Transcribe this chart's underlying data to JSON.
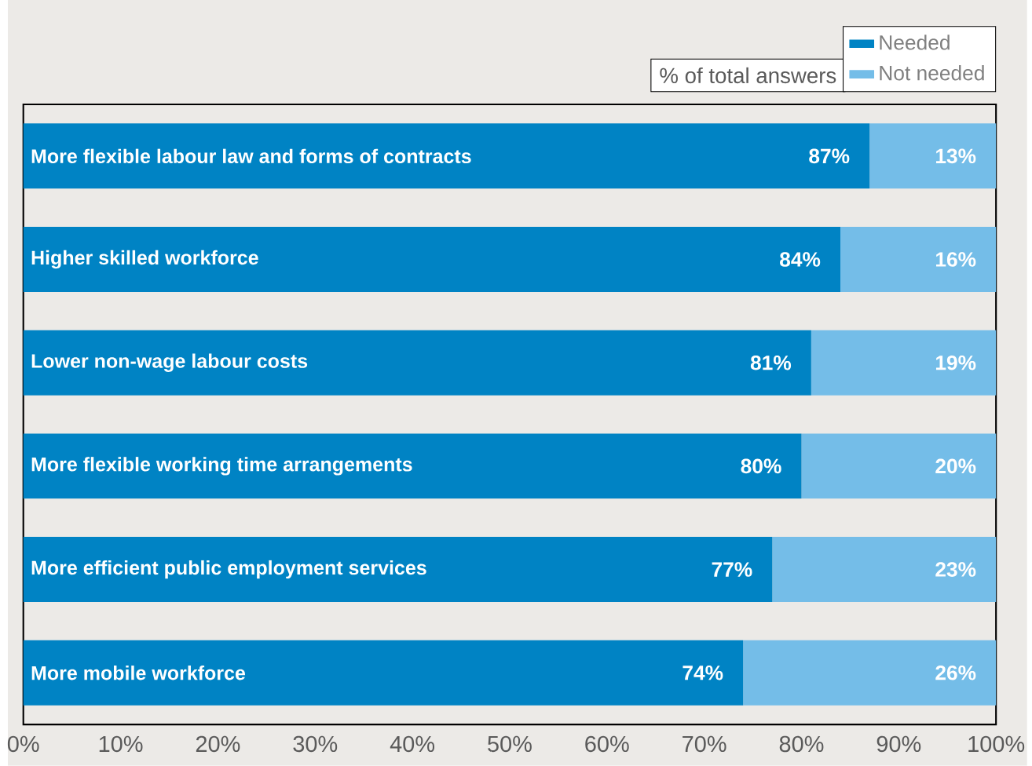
{
  "chart_data": {
    "type": "bar",
    "orientation": "horizontal",
    "stacked": true,
    "categories": [
      "More flexible labour law and forms of contracts",
      "Higher skilled workforce",
      "Lower non-wage labour costs",
      "More flexible working time arrangements",
      "More efficient public employment services",
      "More mobile workforce"
    ],
    "series": [
      {
        "name": "Needed",
        "color": "#0083c4",
        "values": [
          87,
          84,
          81,
          80,
          77,
          74
        ],
        "value_labels": [
          "87%",
          "84%",
          "81%",
          "80%",
          "77%",
          "74%"
        ]
      },
      {
        "name": "Not needed",
        "color": "#74bde8",
        "values": [
          13,
          16,
          19,
          20,
          23,
          26
        ],
        "value_labels": [
          "13%",
          "16%",
          "19%",
          "20%",
          "23%",
          "26%"
        ]
      }
    ],
    "xlim": [
      0,
      100
    ],
    "xticks": [
      {
        "value": 0,
        "label": "0%"
      },
      {
        "value": 10,
        "label": "10%"
      },
      {
        "value": 20,
        "label": "20%"
      },
      {
        "value": 30,
        "label": "30%"
      },
      {
        "value": 40,
        "label": "40%"
      },
      {
        "value": 50,
        "label": "50%"
      },
      {
        "value": 60,
        "label": "60%"
      },
      {
        "value": 70,
        "label": "70%"
      },
      {
        "value": 80,
        "label": "80%"
      },
      {
        "value": 90,
        "label": "90%"
      },
      {
        "value": 100,
        "label": "100%"
      }
    ],
    "legend": "top right",
    "grid": false,
    "annotations": [
      "% of total answers"
    ]
  }
}
